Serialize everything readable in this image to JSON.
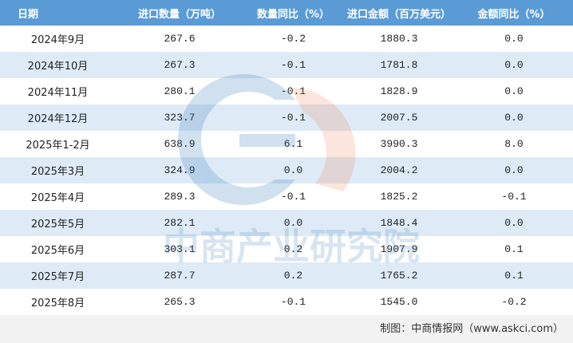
{
  "table": {
    "header": [
      "日期",
      "进口数量（万吨）",
      "数量同比（%）",
      "进口金额（百万美元）",
      "金额同比（%）"
    ],
    "rows": [
      [
        "2024年9月",
        "267.6",
        "-0.2",
        "1880.3",
        "0.0"
      ],
      [
        "2024年10月",
        "267.3",
        "-0.1",
        "1781.8",
        "0.0"
      ],
      [
        "2024年11月",
        "280.1",
        "-0.1",
        "1828.9",
        "0.0"
      ],
      [
        "2024年12月",
        "323.7",
        "-0.1",
        "2007.5",
        "0.0"
      ],
      [
        "2025年1-2月",
        "638.9",
        "6.1",
        "3990.3",
        "8.0"
      ],
      [
        "2025年3月",
        "324.9",
        "0.0",
        "2004.2",
        "0.0"
      ],
      [
        "2025年4月",
        "289.3",
        "-0.1",
        "1825.2",
        "-0.1"
      ],
      [
        "2025年5月",
        "282.1",
        "0.0",
        "1848.4",
        "0.0"
      ],
      [
        "2025年6月",
        "303.1",
        "0.2",
        "1907.9",
        "0.1"
      ],
      [
        "2025年7月",
        "287.7",
        "0.2",
        "1765.2",
        "0.1"
      ],
      [
        "2025年8月",
        "265.3",
        "-0.1",
        "1545.0",
        "-0.2"
      ]
    ]
  },
  "watermark": "中商产业研究院",
  "footer": "制图：中商情报网（www.askci.com）"
}
